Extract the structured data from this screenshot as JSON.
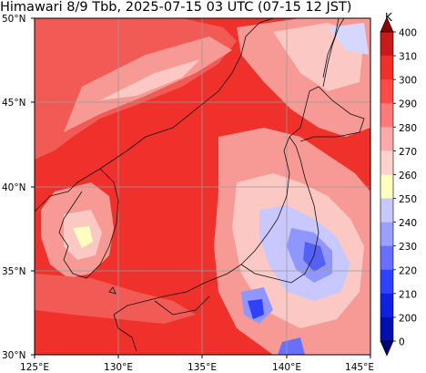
{
  "title": "Himawari 8/9 Tbb, 2025-07-15 03 UTC (07-15 12 JST)",
  "map": {
    "lon_range": [
      125,
      145
    ],
    "lat_range": [
      30,
      50
    ],
    "lon_ticks": [
      "125°E",
      "130°E",
      "135°E",
      "140°E",
      "145°E"
    ],
    "lat_ticks": [
      "30°N",
      "35°N",
      "40°N",
      "45°N",
      "50°N"
    ],
    "gridlines": true,
    "dominant_fill": "#f0302a"
  },
  "colorbar": {
    "unit": "K",
    "levels": [
      "400",
      "310",
      "300",
      "290",
      "280",
      "270",
      "260",
      "250",
      "240",
      "230",
      "220",
      "210",
      "200",
      "0"
    ],
    "colors": [
      "#8b0000",
      "#c81a1a",
      "#f03028",
      "#ff4a48",
      "#ff7a78",
      "#ffaaaa",
      "#ffd0cc",
      "#ffffc0",
      "#c8c8ff",
      "#9aa0ff",
      "#6870ff",
      "#3040ff",
      "#1020e0",
      "#0010b0",
      "#00007a"
    ]
  }
}
